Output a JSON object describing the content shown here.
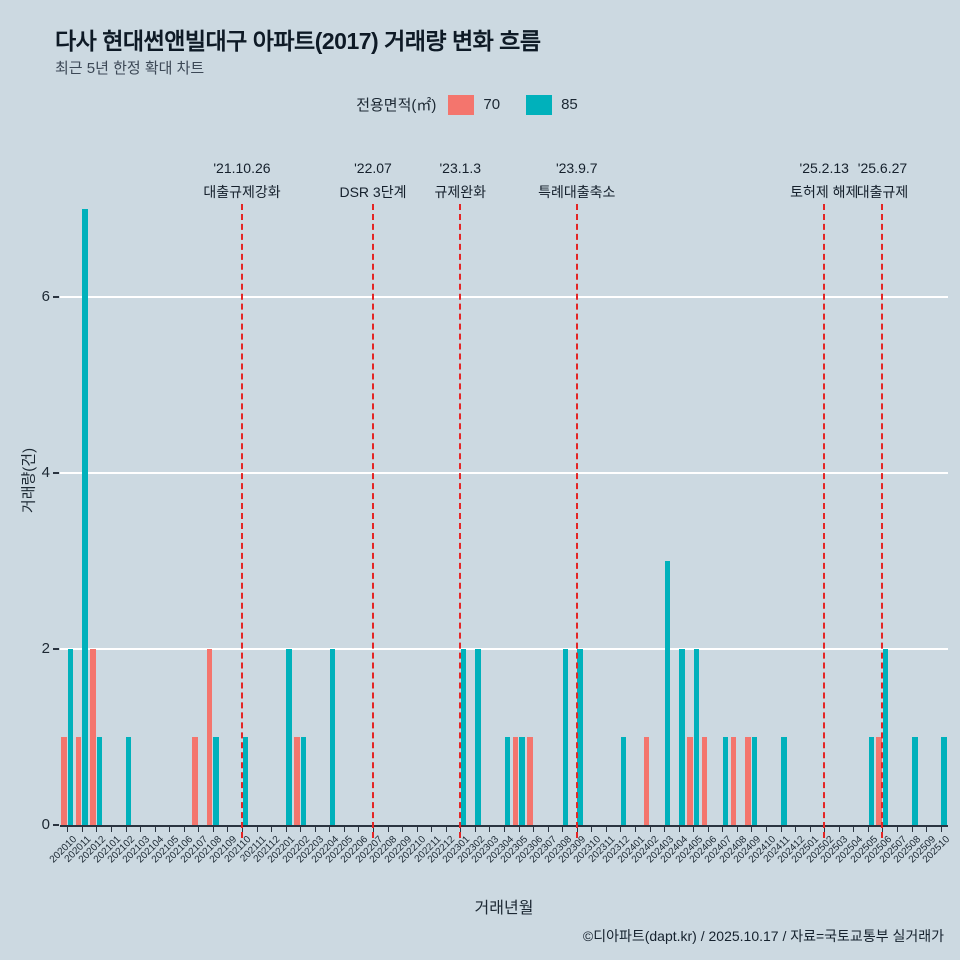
{
  "header": {
    "title": "다사 현대썬앤빌대구 아파트(2017) 거래량 변화 흐름",
    "subtitle": "최근 5년 한정 확대 차트"
  },
  "legend": {
    "label": "전용면적(㎡)",
    "items": [
      {
        "name": "70",
        "color": "#f4756d"
      },
      {
        "name": "85",
        "color": "#00b1bb"
      }
    ]
  },
  "chart_data": {
    "type": "bar",
    "title": "다사 현대썬앤빌대구 아파트(2017) 거래량 변화 흐름",
    "subtitle": "최근 5년 한정 확대 차트",
    "xlabel": "거래년월",
    "ylabel": "거래량(건)",
    "ylim": [
      0,
      7.8
    ],
    "yticks": [
      0,
      2,
      4,
      6
    ],
    "grid": true,
    "legend_position": "top",
    "categories": [
      "202010",
      "202011",
      "202012",
      "202101",
      "202102",
      "202103",
      "202104",
      "202105",
      "202106",
      "202107",
      "202108",
      "202109",
      "202110",
      "202111",
      "202112",
      "202201",
      "202202",
      "202203",
      "202204",
      "202205",
      "202206",
      "202207",
      "202208",
      "202209",
      "202210",
      "202211",
      "202212",
      "202301",
      "202302",
      "202303",
      "202304",
      "202305",
      "202306",
      "202307",
      "202308",
      "202309",
      "202310",
      "202311",
      "202312",
      "202401",
      "202402",
      "202403",
      "202404",
      "202405",
      "202406",
      "202407",
      "202408",
      "202409",
      "202410",
      "202411",
      "202412",
      "202501",
      "202502",
      "202503",
      "202504",
      "202505",
      "202506",
      "202507",
      "202508",
      "202509",
      "202510"
    ],
    "series": [
      {
        "name": "70",
        "color": "#f4756d",
        "values": [
          1,
          1,
          2,
          0,
          0,
          0,
          0,
          0,
          0,
          1,
          2,
          0,
          0,
          0,
          0,
          0,
          1,
          0,
          0,
          0,
          0,
          0,
          0,
          0,
          0,
          0,
          0,
          0,
          0,
          0,
          0,
          1,
          1,
          0,
          0,
          0,
          0,
          0,
          0,
          0,
          1,
          0,
          0,
          1,
          1,
          0,
          1,
          1,
          0,
          0,
          0,
          0,
          0,
          0,
          0,
          0,
          1,
          0,
          0,
          0,
          0
        ]
      },
      {
        "name": "85",
        "color": "#00b1bb",
        "values": [
          2,
          7,
          1,
          0,
          1,
          0,
          0,
          0,
          0,
          0,
          1,
          0,
          1,
          0,
          0,
          2,
          1,
          0,
          2,
          0,
          0,
          0,
          0,
          0,
          0,
          0,
          0,
          2,
          2,
          0,
          1,
          1,
          0,
          0,
          2,
          2,
          0,
          0,
          1,
          0,
          0,
          3,
          2,
          2,
          0,
          1,
          0,
          1,
          0,
          1,
          0,
          0,
          0,
          0,
          0,
          1,
          2,
          0,
          1,
          0,
          1
        ]
      }
    ],
    "annotations": [
      {
        "category": "202110",
        "date": "'21.10.26",
        "label": "대출규제강화"
      },
      {
        "category": "202207",
        "date": "'22.07",
        "label": "DSR 3단계"
      },
      {
        "category": "202301",
        "date": "'23.1.3",
        "label": "규제완화"
      },
      {
        "category": "202309",
        "date": "'23.9.7",
        "label": "특례대출축소"
      },
      {
        "category": "202502",
        "date": "'25.2.13",
        "label": "토허제 해제"
      },
      {
        "category": "202506",
        "date": "'25.6.27",
        "label": "대출규제"
      }
    ]
  },
  "theme": {
    "background": "#ccd9e1",
    "gridline_color": "#ffffff",
    "annotation_line_color": "#e42525",
    "axis_color": "#2a3440"
  },
  "footer": {
    "credit": "©디아파트(dapt.kr) / 2025.10.17 / 자료=국토교통부 실거래가"
  }
}
